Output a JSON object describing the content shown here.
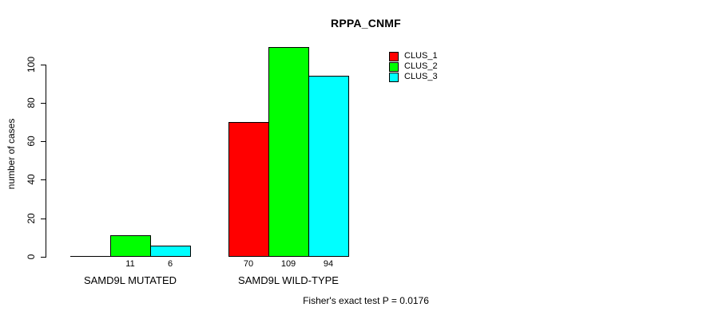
{
  "chart_data": {
    "type": "bar",
    "title": "RPPA_CNMF",
    "xlabel": "",
    "ylabel": "number of cases",
    "categories": [
      "SAMD9L MUTATED",
      "SAMD9L WILD-TYPE"
    ],
    "series": [
      {
        "name": "CLUS_1",
        "color": "#ff0000",
        "values": [
          0,
          70
        ]
      },
      {
        "name": "CLUS_2",
        "color": "#00ff00",
        "values": [
          11,
          109
        ]
      },
      {
        "name": "CLUS_3",
        "color": "#00ffff",
        "values": [
          6,
          94
        ]
      }
    ],
    "bar_value_labels": [
      [
        "",
        "11",
        "6"
      ],
      [
        "70",
        "109",
        "94"
      ]
    ],
    "yticks": [
      0,
      20,
      40,
      60,
      80,
      100
    ],
    "ylim": [
      0,
      109
    ],
    "grid": false,
    "legend": {
      "position": "top-right",
      "entries": [
        {
          "label": "CLUS_1",
          "color": "#ff0000"
        },
        {
          "label": "CLUS_2",
          "color": "#00ff00"
        },
        {
          "label": "CLUS_3",
          "color": "#00ffff"
        }
      ]
    },
    "annotation": "Fisher's exact test P = 0.0176"
  }
}
